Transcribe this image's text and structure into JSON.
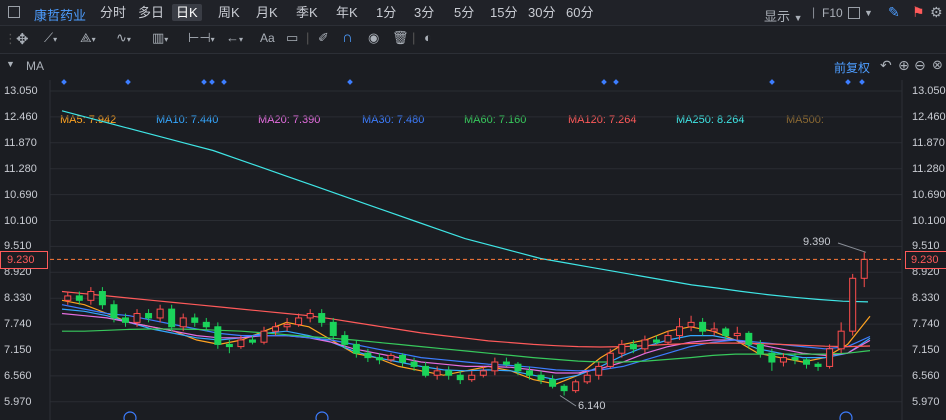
{
  "stock_name": "康哲药业",
  "periods": [
    "分时",
    "多日",
    "日K",
    "周K",
    "月K",
    "季K",
    "年K",
    "1分",
    "3分",
    "5分",
    "15分",
    "30分",
    "60分"
  ],
  "active_period": "日K",
  "top_right": {
    "display_label": "显示",
    "f10_label": "F10"
  },
  "toolbar": {
    "text_tool": "Aa"
  },
  "indicator_label": "MA",
  "ma_lines": [
    {
      "label": "MA5: 7.942",
      "color": "#ffa321"
    },
    {
      "label": "MA10: 7.440",
      "color": "#35a7ff"
    },
    {
      "label": "MA20: 7.390",
      "color": "#e56ee0"
    },
    {
      "label": "MA30: 7.480",
      "color": "#3d7dff"
    },
    {
      "label": "MA60: 7.160",
      "color": "#37c95c"
    },
    {
      "label": "MA120: 7.264",
      "color": "#ff5a5a"
    },
    {
      "label": "MA250: 8.264",
      "color": "#3fe6e6"
    },
    {
      "label": "MA500:",
      "color": "#8c6a33"
    }
  ],
  "adjust_label": "前复权",
  "price_axis": [
    "13.050",
    "12.460",
    "11.870",
    "11.280",
    "10.690",
    "10.100",
    "9.510",
    "8.920",
    "8.330",
    "7.740",
    "7.150",
    "6.560",
    "5.970"
  ],
  "current_price": "9.230",
  "annotations": {
    "high": "9.390",
    "low": "6.140"
  },
  "chart_data": {
    "type": "candlestick",
    "ylim": [
      5.97,
      13.05
    ],
    "current_price": 9.23,
    "high_label": 9.39,
    "low_label": 6.14,
    "candles": [
      {
        "o": 8.3,
        "c": 8.4,
        "h": 8.5,
        "l": 8.2
      },
      {
        "o": 8.4,
        "c": 8.3,
        "h": 8.5,
        "l": 8.2
      },
      {
        "o": 8.3,
        "c": 8.5,
        "h": 8.6,
        "l": 8.2
      },
      {
        "o": 8.5,
        "c": 8.2,
        "h": 8.6,
        "l": 8.1
      },
      {
        "o": 8.2,
        "c": 7.9,
        "h": 8.3,
        "l": 7.8
      },
      {
        "o": 7.9,
        "c": 7.8,
        "h": 8.0,
        "l": 7.7
      },
      {
        "o": 7.8,
        "c": 8.0,
        "h": 8.1,
        "l": 7.7
      },
      {
        "o": 8.0,
        "c": 7.9,
        "h": 8.1,
        "l": 7.8
      },
      {
        "o": 7.9,
        "c": 8.1,
        "h": 8.2,
        "l": 7.8
      },
      {
        "o": 8.1,
        "c": 7.7,
        "h": 8.2,
        "l": 7.6
      },
      {
        "o": 7.7,
        "c": 7.9,
        "h": 8.0,
        "l": 7.6
      },
      {
        "o": 7.9,
        "c": 7.8,
        "h": 8.0,
        "l": 7.7
      },
      {
        "o": 7.8,
        "c": 7.7,
        "h": 7.9,
        "l": 7.6
      },
      {
        "o": 7.7,
        "c": 7.3,
        "h": 7.8,
        "l": 7.2
      },
      {
        "o": 7.3,
        "c": 7.25,
        "h": 7.4,
        "l": 7.1
      },
      {
        "o": 7.25,
        "c": 7.4,
        "h": 7.5,
        "l": 7.2
      },
      {
        "o": 7.4,
        "c": 7.35,
        "h": 7.5,
        "l": 7.3
      },
      {
        "o": 7.35,
        "c": 7.6,
        "h": 7.7,
        "l": 7.3
      },
      {
        "o": 7.6,
        "c": 7.7,
        "h": 7.8,
        "l": 7.5
      },
      {
        "o": 7.7,
        "c": 7.75,
        "h": 7.9,
        "l": 7.6
      },
      {
        "o": 7.75,
        "c": 7.9,
        "h": 8.0,
        "l": 7.7
      },
      {
        "o": 7.9,
        "c": 8.0,
        "h": 8.1,
        "l": 7.8
      },
      {
        "o": 8.0,
        "c": 7.8,
        "h": 8.1,
        "l": 7.7
      },
      {
        "o": 7.8,
        "c": 7.5,
        "h": 7.9,
        "l": 7.4
      },
      {
        "o": 7.5,
        "c": 7.3,
        "h": 7.6,
        "l": 7.2
      },
      {
        "o": 7.3,
        "c": 7.1,
        "h": 7.4,
        "l": 7.0
      },
      {
        "o": 7.1,
        "c": 7.0,
        "h": 7.2,
        "l": 6.9
      },
      {
        "o": 7.0,
        "c": 6.95,
        "h": 7.1,
        "l": 6.85
      },
      {
        "o": 6.95,
        "c": 7.05,
        "h": 7.1,
        "l": 6.9
      },
      {
        "o": 7.05,
        "c": 6.9,
        "h": 7.1,
        "l": 6.8
      },
      {
        "o": 6.9,
        "c": 6.8,
        "h": 7.0,
        "l": 6.7
      },
      {
        "o": 6.8,
        "c": 6.6,
        "h": 6.9,
        "l": 6.55
      },
      {
        "o": 6.6,
        "c": 6.7,
        "h": 6.8,
        "l": 6.5
      },
      {
        "o": 6.7,
        "c": 6.6,
        "h": 6.8,
        "l": 6.5
      },
      {
        "o": 6.6,
        "c": 6.5,
        "h": 6.7,
        "l": 6.4
      },
      {
        "o": 6.5,
        "c": 6.6,
        "h": 6.7,
        "l": 6.45
      },
      {
        "o": 6.6,
        "c": 6.7,
        "h": 6.8,
        "l": 6.55
      },
      {
        "o": 6.7,
        "c": 6.9,
        "h": 7.0,
        "l": 6.6
      },
      {
        "o": 6.9,
        "c": 6.85,
        "h": 7.0,
        "l": 6.8
      },
      {
        "o": 6.85,
        "c": 6.7,
        "h": 6.9,
        "l": 6.6
      },
      {
        "o": 6.7,
        "c": 6.6,
        "h": 6.8,
        "l": 6.5
      },
      {
        "o": 6.6,
        "c": 6.5,
        "h": 6.7,
        "l": 6.4
      },
      {
        "o": 6.5,
        "c": 6.35,
        "h": 6.6,
        "l": 6.3
      },
      {
        "o": 6.35,
        "c": 6.25,
        "h": 6.4,
        "l": 6.14
      },
      {
        "o": 6.25,
        "c": 6.45,
        "h": 6.5,
        "l": 6.2
      },
      {
        "o": 6.45,
        "c": 6.6,
        "h": 6.7,
        "l": 6.4
      },
      {
        "o": 6.6,
        "c": 6.8,
        "h": 6.9,
        "l": 6.5
      },
      {
        "o": 6.8,
        "c": 7.1,
        "h": 7.2,
        "l": 6.75
      },
      {
        "o": 7.1,
        "c": 7.3,
        "h": 7.4,
        "l": 7.0
      },
      {
        "o": 7.3,
        "c": 7.2,
        "h": 7.4,
        "l": 7.1
      },
      {
        "o": 7.2,
        "c": 7.4,
        "h": 7.5,
        "l": 7.1
      },
      {
        "o": 7.4,
        "c": 7.35,
        "h": 7.5,
        "l": 7.3
      },
      {
        "o": 7.35,
        "c": 7.5,
        "h": 7.6,
        "l": 7.3
      },
      {
        "o": 7.5,
        "c": 7.7,
        "h": 7.9,
        "l": 7.4
      },
      {
        "o": 7.7,
        "c": 7.8,
        "h": 7.95,
        "l": 7.6
      },
      {
        "o": 7.8,
        "c": 7.6,
        "h": 7.9,
        "l": 7.5
      },
      {
        "o": 7.6,
        "c": 7.65,
        "h": 7.8,
        "l": 7.5
      },
      {
        "o": 7.65,
        "c": 7.5,
        "h": 7.7,
        "l": 7.4
      },
      {
        "o": 7.5,
        "c": 7.55,
        "h": 7.7,
        "l": 7.4
      },
      {
        "o": 7.55,
        "c": 7.3,
        "h": 7.6,
        "l": 7.2
      },
      {
        "o": 7.3,
        "c": 7.1,
        "h": 7.4,
        "l": 7.0
      },
      {
        "o": 7.1,
        "c": 6.9,
        "h": 7.2,
        "l": 6.7
      },
      {
        "o": 6.9,
        "c": 7.0,
        "h": 7.1,
        "l": 6.8
      },
      {
        "o": 7.0,
        "c": 6.95,
        "h": 7.1,
        "l": 6.85
      },
      {
        "o": 6.95,
        "c": 6.85,
        "h": 7.0,
        "l": 6.75
      },
      {
        "o": 6.85,
        "c": 6.8,
        "h": 6.9,
        "l": 6.7
      },
      {
        "o": 6.8,
        "c": 7.2,
        "h": 7.3,
        "l": 6.75
      },
      {
        "o": 7.2,
        "c": 7.6,
        "h": 7.8,
        "l": 7.1
      },
      {
        "o": 7.6,
        "c": 8.8,
        "h": 8.9,
        "l": 7.5
      },
      {
        "o": 8.8,
        "c": 9.23,
        "h": 9.39,
        "l": 8.6
      }
    ],
    "ma_series": [
      {
        "name": "MA5",
        "color": "#ffa321",
        "values": [
          8.3,
          8.2,
          8.0,
          7.8,
          7.7,
          7.6,
          7.4,
          7.3,
          7.4,
          7.6,
          7.8,
          7.7,
          7.4,
          7.1,
          7.0,
          6.8,
          6.7,
          6.6,
          6.7,
          6.8,
          6.7,
          6.5,
          6.4,
          6.6,
          7.0,
          7.3,
          7.4,
          7.6,
          7.7,
          7.6,
          7.4,
          7.1,
          7.0,
          6.9,
          7.0,
          7.3,
          7.94
        ]
      },
      {
        "name": "MA10",
        "color": "#35a7ff",
        "values": [
          8.1,
          8.05,
          7.95,
          7.8,
          7.65,
          7.55,
          7.45,
          7.4,
          7.45,
          7.55,
          7.6,
          7.5,
          7.35,
          7.15,
          7.0,
          6.9,
          6.8,
          6.72,
          6.7,
          6.72,
          6.7,
          6.6,
          6.5,
          6.6,
          6.8,
          7.05,
          7.25,
          7.4,
          7.5,
          7.5,
          7.4,
          7.2,
          7.1,
          7.0,
          7.0,
          7.1,
          7.44
        ]
      },
      {
        "name": "MA20",
        "color": "#e56ee0",
        "values": [
          8.0,
          7.95,
          7.9,
          7.8,
          7.7,
          7.6,
          7.5,
          7.45,
          7.45,
          7.5,
          7.5,
          7.45,
          7.35,
          7.2,
          7.1,
          7.0,
          6.9,
          6.85,
          6.8,
          6.8,
          6.78,
          6.72,
          6.65,
          6.65,
          6.75,
          6.9,
          7.1,
          7.25,
          7.35,
          7.4,
          7.4,
          7.3,
          7.2,
          7.1,
          7.05,
          7.1,
          7.39
        ]
      },
      {
        "name": "MA30",
        "color": "#3d7dff",
        "values": [
          8.2,
          8.1,
          8.0,
          7.95,
          7.85,
          7.75,
          7.65,
          7.55,
          7.5,
          7.5,
          7.5,
          7.45,
          7.4,
          7.3,
          7.2,
          7.1,
          7.0,
          6.95,
          6.9,
          6.85,
          6.82,
          6.78,
          6.72,
          6.7,
          6.72,
          6.8,
          6.95,
          7.1,
          7.25,
          7.35,
          7.4,
          7.35,
          7.3,
          7.25,
          7.2,
          7.25,
          7.48
        ]
      },
      {
        "name": "MA60",
        "color": "#37c95c",
        "values": [
          7.6,
          7.6,
          7.62,
          7.64,
          7.65,
          7.65,
          7.64,
          7.62,
          7.6,
          7.56,
          7.52,
          7.48,
          7.44,
          7.4,
          7.35,
          7.3,
          7.25,
          7.2,
          7.15,
          7.1,
          7.05,
          7.0,
          6.96,
          6.92,
          6.9,
          6.9,
          6.92,
          6.96,
          7.0,
          7.05,
          7.08,
          7.08,
          7.08,
          7.08,
          7.08,
          7.1,
          7.16
        ]
      },
      {
        "name": "MA120",
        "color": "#ff5a5a",
        "values": [
          8.5,
          8.45,
          8.4,
          8.35,
          8.3,
          8.25,
          8.2,
          8.15,
          8.1,
          8.05,
          8.0,
          7.95,
          7.88,
          7.8,
          7.72,
          7.64,
          7.56,
          7.5,
          7.44,
          7.38,
          7.34,
          7.3,
          7.27,
          7.25,
          7.24,
          7.25,
          7.27,
          7.3,
          7.32,
          7.33,
          7.33,
          7.32,
          7.3,
          7.28,
          7.26,
          7.25,
          7.264
        ]
      },
      {
        "name": "MA250",
        "color": "#3fe6e6",
        "values": [
          12.6,
          12.45,
          12.3,
          12.15,
          12.0,
          11.85,
          11.7,
          11.5,
          11.3,
          11.1,
          10.9,
          10.7,
          10.5,
          10.3,
          10.1,
          9.9,
          9.7,
          9.55,
          9.4,
          9.25,
          9.15,
          9.05,
          8.95,
          8.85,
          8.75,
          8.65,
          8.58,
          8.5,
          8.43,
          8.37,
          8.32,
          8.28,
          8.264
        ]
      }
    ]
  }
}
